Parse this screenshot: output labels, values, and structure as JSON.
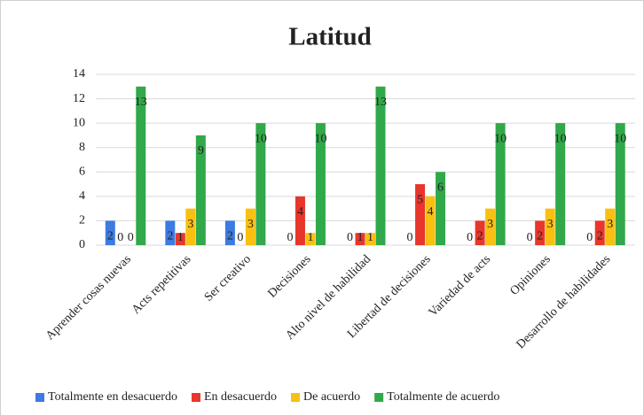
{
  "chart_data": {
    "type": "bar",
    "title": "Latitud",
    "categories": [
      "Aprender cosas nuevas",
      "Acts repetitivas",
      "Ser creativo",
      "Decisiones",
      "Alto nivel de habilidad",
      "Libertad de decisiones",
      "Variedad de acts",
      "Opiniones",
      "Desarrollo de habilidades"
    ],
    "series": [
      {
        "name": "Totalmente en desacuerdo",
        "color": "#3c7be0",
        "values": [
          2,
          2,
          2,
          0,
          0,
          0,
          0,
          0,
          0
        ]
      },
      {
        "name": "En desacuerdo",
        "color": "#e8362c",
        "values": [
          0,
          1,
          0,
          4,
          1,
          5,
          2,
          2,
          2
        ]
      },
      {
        "name": "De acuerdo",
        "color": "#f9c012",
        "values": [
          0,
          3,
          3,
          1,
          1,
          4,
          3,
          3,
          3
        ]
      },
      {
        "name": "Totalmente de acuerdo",
        "color": "#31a84a",
        "values": [
          13,
          9,
          10,
          10,
          13,
          6,
          10,
          10,
          10
        ]
      }
    ],
    "ylim": [
      0,
      14
    ],
    "yticks": [
      0,
      2,
      4,
      6,
      8,
      10,
      12,
      14
    ],
    "grid": true,
    "legend": "bottom"
  }
}
